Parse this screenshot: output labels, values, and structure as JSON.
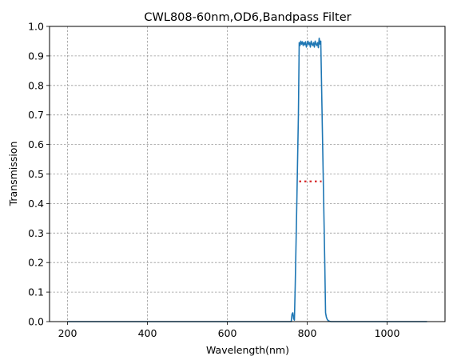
{
  "chart_data": {
    "type": "line",
    "title": "CWL808-60nm,OD6,Bandpass Filter",
    "xlabel": "Wavelength(nm)",
    "ylabel": "Transmission",
    "xlim": [
      155,
      1145
    ],
    "ylim": [
      0,
      1.0
    ],
    "x_ticks": [
      200,
      400,
      600,
      800,
      1000
    ],
    "y_ticks": [
      0.0,
      0.1,
      0.2,
      0.3,
      0.4,
      0.5,
      0.6,
      0.7,
      0.8,
      0.9,
      1.0
    ],
    "x_tick_labels": [
      "200",
      "400",
      "600",
      "800",
      "1000"
    ],
    "y_tick_labels": [
      "0.0",
      "0.1",
      "0.2",
      "0.3",
      "0.4",
      "0.5",
      "0.6",
      "0.7",
      "0.8",
      "0.9",
      "1.0"
    ],
    "grid": true,
    "legend": "none",
    "series": [
      {
        "color": "#1f77b4",
        "style": "solid",
        "x": [
          200,
          400,
          600,
          750,
          760,
          762,
          764,
          766,
          768,
          770,
          774,
          778,
          780,
          782,
          784,
          786,
          788,
          790,
          792,
          794,
          796,
          798,
          800,
          802,
          804,
          806,
          808,
          810,
          812,
          814,
          816,
          818,
          820,
          822,
          824,
          826,
          828,
          830,
          832,
          834,
          836,
          840,
          844,
          846,
          848,
          850,
          852,
          856,
          860,
          900,
          1000,
          1100
        ],
        "y": [
          0.0,
          0.0,
          0.0,
          0.0,
          0.0,
          0.025,
          0.03,
          0.01,
          0.005,
          0.12,
          0.4,
          0.7,
          0.945,
          0.935,
          0.95,
          0.94,
          0.948,
          0.935,
          0.945,
          0.938,
          0.948,
          0.93,
          0.94,
          0.95,
          0.938,
          0.945,
          0.93,
          0.95,
          0.94,
          0.935,
          0.945,
          0.93,
          0.95,
          0.94,
          0.935,
          0.945,
          0.928,
          0.96,
          0.94,
          0.95,
          0.8,
          0.5,
          0.2,
          0.03,
          0.015,
          0.008,
          0.004,
          0.001,
          0.0,
          0.0,
          0.0,
          0.0
        ]
      },
      {
        "color": "#d62728",
        "style": "dotted",
        "x": [
          780,
          836
        ],
        "y": [
          0.475,
          0.475
        ]
      }
    ]
  }
}
